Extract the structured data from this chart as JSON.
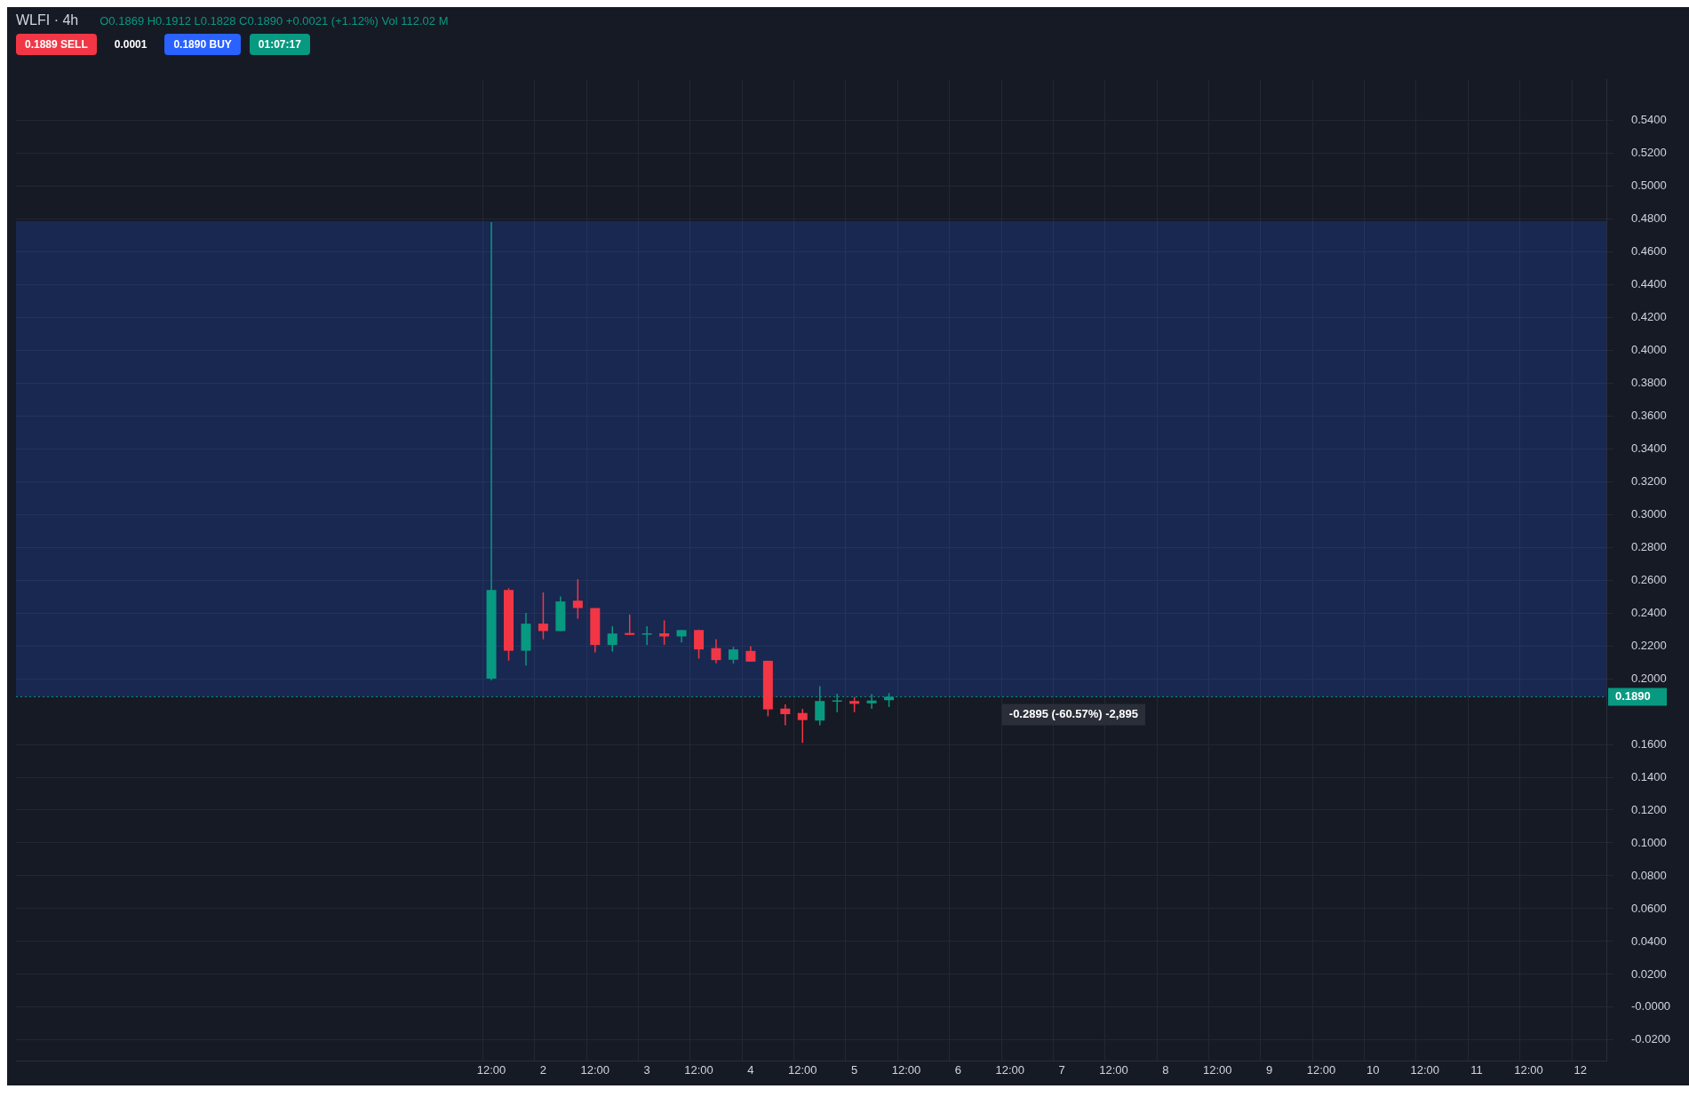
{
  "chart_data": {
    "type": "candlestick",
    "title": "WLFI · 4h",
    "subtitle": "O0.1869 H0.1912 L0.1828 C0.1890 +0.0021 (+1.12%) Vol 112.02 M",
    "categories": [
      null,
      null,
      null,
      null,
      null,
      null,
      null,
      null,
      null,
      null,
      null,
      null,
      null,
      null,
      null,
      null,
      null,
      null,
      null,
      null,
      null,
      null,
      null,
      null,
      null,
      null,
      null,
      "12:00",
      null,
      null,
      "2",
      null,
      null,
      "12:00",
      null,
      null,
      "3",
      null,
      null,
      "12:00",
      null,
      null,
      "4",
      null,
      null,
      "12:00",
      null,
      null,
      "5",
      null,
      null,
      "12:00",
      null,
      null,
      "6",
      null,
      null,
      "12:00",
      null,
      null,
      "7",
      null,
      null,
      "12:00",
      null,
      null,
      "8",
      null,
      null,
      "12:00",
      null,
      null,
      "9",
      null,
      null,
      "12:00",
      null,
      null,
      "10",
      null,
      null,
      "12:00",
      null,
      null,
      "11",
      null,
      null,
      "12:00",
      null,
      null,
      "12",
      null
    ],
    "ohlc": [
      null,
      null,
      null,
      null,
      null,
      null,
      null,
      null,
      null,
      null,
      null,
      null,
      null,
      null,
      null,
      null,
      null,
      null,
      null,
      null,
      null,
      null,
      null,
      null,
      null,
      null,
      null,
      [
        0.2,
        0.478,
        0.199,
        0.254
      ],
      [
        0.254,
        0.255,
        0.211,
        0.217
      ],
      [
        0.217,
        0.24,
        0.208,
        0.2335
      ],
      [
        0.2335,
        0.2525,
        0.224,
        0.229
      ],
      [
        0.229,
        0.25,
        0.229,
        0.247
      ],
      [
        0.2475,
        0.2605,
        0.2365,
        0.243
      ],
      [
        0.243,
        0.243,
        0.216,
        0.2205
      ],
      [
        0.2205,
        0.232,
        0.2165,
        0.2275
      ],
      [
        0.2278,
        0.239,
        0.2265,
        0.2266
      ],
      [
        0.2272,
        0.232,
        0.2205,
        0.2276
      ],
      [
        0.2276,
        0.2355,
        0.2206,
        0.2257
      ],
      [
        0.2257,
        0.2296,
        0.222,
        0.2296
      ],
      [
        0.2296,
        0.2298,
        0.2122,
        0.2178
      ],
      [
        0.2186,
        0.224,
        0.2093,
        0.2113
      ],
      [
        0.2115,
        0.2194,
        0.2093,
        0.2178
      ],
      [
        0.2169,
        0.2198,
        0.2104,
        0.2104
      ],
      [
        0.2109,
        0.2109,
        0.1771,
        0.1813
      ],
      [
        0.1818,
        0.1843,
        0.1716,
        0.1784
      ],
      [
        0.1791,
        0.1816,
        0.1609,
        0.1748
      ],
      [
        0.1745,
        0.1954,
        0.1716,
        0.1864
      ],
      [
        0.1866,
        0.1909,
        0.1796,
        0.1868
      ],
      [
        0.1864,
        0.1889,
        0.1796,
        0.1847
      ],
      [
        0.185,
        0.1906,
        0.1816,
        0.1867
      ],
      [
        0.1869,
        0.1912,
        0.1828,
        0.189
      ],
      null,
      null,
      null,
      null,
      null,
      null,
      null,
      null,
      null,
      null,
      null,
      null,
      null,
      null,
      null,
      null,
      null,
      null,
      null,
      null,
      null,
      null,
      null,
      null,
      null,
      null,
      null,
      null,
      null,
      null,
      null,
      null,
      null,
      null,
      null,
      null,
      null,
      null,
      null,
      null,
      null
    ],
    "colors": [
      null,
      null,
      null,
      null,
      null,
      null,
      null,
      null,
      null,
      null,
      null,
      null,
      null,
      null,
      null,
      null,
      null,
      null,
      null,
      null,
      null,
      null,
      null,
      null,
      null,
      null,
      null,
      "#089981",
      "#f23645",
      "#089981",
      "#f23645",
      "#089981",
      "#f23645",
      "#f23645",
      "#089981",
      "#f23645",
      "#089981",
      "#f23645",
      "#089981",
      "#f23645",
      "#f23645",
      "#089981",
      "#f23645",
      "#f23645",
      "#f23645",
      "#f23645",
      "#089981",
      "#089981",
      "#f23645",
      "#089981",
      "#089981",
      null,
      null,
      null,
      null,
      null,
      null,
      null,
      null,
      null,
      null,
      null,
      null,
      null,
      null,
      null,
      null,
      null,
      null,
      null,
      null,
      null,
      null,
      null,
      null,
      null,
      null,
      null,
      null,
      null,
      null,
      null,
      null,
      null,
      null,
      null,
      null,
      null,
      null,
      null,
      null,
      null
    ],
    "ylim": [
      -0.0326,
      0.5646
    ],
    "yticks": [
      {
        "value": -0.02,
        "label": "-0.0200"
      },
      {
        "value": 0,
        "label": "-0.0000"
      },
      {
        "value": 0.02,
        "label": "0.0200"
      },
      {
        "value": 0.04,
        "label": "0.0400"
      },
      {
        "value": 0.06,
        "label": "0.0600"
      },
      {
        "value": 0.08,
        "label": "0.0800"
      },
      {
        "value": 0.1,
        "label": "0.1000"
      },
      {
        "value": 0.12,
        "label": "0.1200"
      },
      {
        "value": 0.14,
        "label": "0.1400"
      },
      {
        "value": 0.16,
        "label": "0.1600"
      },
      {
        "value": 0.2,
        "label": "0.2000"
      },
      {
        "value": 0.22,
        "label": "0.2200"
      },
      {
        "value": 0.24,
        "label": "0.2400"
      },
      {
        "value": 0.26,
        "label": "0.2600"
      },
      {
        "value": 0.28,
        "label": "0.2800"
      },
      {
        "value": 0.3,
        "label": "0.3000"
      },
      {
        "value": 0.32,
        "label": "0.3200"
      },
      {
        "value": 0.34,
        "label": "0.3400"
      },
      {
        "value": 0.36,
        "label": "0.3600"
      },
      {
        "value": 0.38,
        "label": "0.3800"
      },
      {
        "value": 0.4,
        "label": "0.4000"
      },
      {
        "value": 0.42,
        "label": "0.4200"
      },
      {
        "value": 0.44,
        "label": "0.4400"
      },
      {
        "value": 0.46,
        "label": "0.4600"
      },
      {
        "value": 0.48,
        "label": "0.4800"
      },
      {
        "value": 0.5,
        "label": "0.5000"
      },
      {
        "value": 0.52,
        "label": "0.5200"
      },
      {
        "value": 0.54,
        "label": "0.5400"
      }
    ],
    "ref_lines": [
      {
        "axis": "y",
        "value": 0.189,
        "label": "0.1890",
        "color": "#089981",
        "line_style": "dotted"
      }
    ],
    "bands": [
      {
        "axis": "y",
        "from": 0.189,
        "to": 0.4785,
        "label": "-0.2895 (-60.57%) -2,895",
        "color": "#2962ff"
      }
    ],
    "annotations": [
      "0.1889 SELL",
      "0.0001",
      "0.1890 BUY",
      "01:07:17"
    ],
    "grid": true
  }
}
